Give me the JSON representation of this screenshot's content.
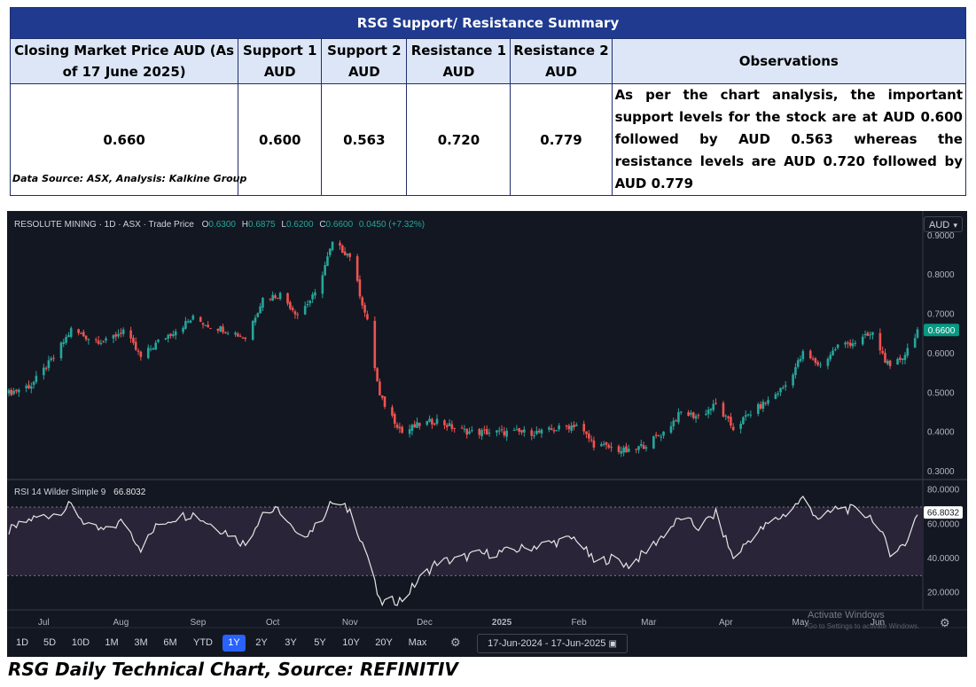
{
  "summary_table": {
    "title": "RSG Support/  Resistance Summary",
    "headers": [
      "Closing Market Price AUD (As of 17 June 2025)",
      "Support 1 AUD",
      "Support 2 AUD",
      "Resistance 1 AUD",
      "Resistance 2 AUD",
      "Observations"
    ],
    "values": [
      "0.660",
      "0.600",
      "0.563",
      "0.720",
      "0.779"
    ],
    "observation": "As per the chart analysis, the important support levels for the stock are at AUD 0.600 followed by AUD 0.563 whereas the resistance levels are AUD 0.720 followed by AUD 0.779",
    "source": "Data Source: ASX, Analysis: Kalkine Group"
  },
  "chart_header": {
    "symbol": "RESOLUTE MINING · 1D · ASX · Trade Price",
    "o_label": "O",
    "o_value": "0.6300",
    "h_label": "H",
    "h_value": "0.6875",
    "l_label": "L",
    "l_value": "0.6200",
    "c_label": "C",
    "c_value": "0.6600",
    "change": "0.0450 (+7.32%)",
    "currency": "AUD",
    "last_price_tag": "0.6600"
  },
  "rsi_header": {
    "label": "RSI 14 Wilder Simple 9",
    "value": "66.8032",
    "value_tag": "66.8032"
  },
  "timeframes": [
    "1D",
    "5D",
    "10D",
    "1M",
    "3M",
    "6M",
    "YTD",
    "1Y",
    "2Y",
    "3Y",
    "5Y",
    "10Y",
    "20Y",
    "Max"
  ],
  "active_timeframe": "1Y",
  "date_range": "17-Jun-2024  -  17-Jun-2025",
  "watermark": {
    "line1": "Activate Windows",
    "line2": "Go to Settings to activate Windows."
  },
  "caption": "RSG Daily Technical Chart, Source: REFINITIV",
  "colors": {
    "up": "#26a69a",
    "down": "#ef5350",
    "background": "#131722",
    "rsi_line": "#e6e6e6",
    "rsi_band": "#2a2438",
    "highlight": "#2962ff",
    "last_price": "#089981"
  },
  "chart_data": [
    {
      "type": "candlestick",
      "title": "RESOLUTE MINING · 1D · ASX · Trade Price",
      "x_range": [
        "2024-06-17",
        "2025-06-17"
      ],
      "x_ticks": [
        "Jul",
        "Aug",
        "Sep",
        "Oct",
        "Nov",
        "Dec",
        "2025",
        "Feb",
        "Mar",
        "Apr",
        "May",
        "Jun"
      ],
      "y_ticks": [
        "0.3000",
        "0.4000",
        "0.5000",
        "0.6000",
        "0.7000",
        "0.8000",
        "0.9000"
      ],
      "ylim": [
        0.28,
        0.94
      ],
      "close_path": [
        {
          "date": "2024-06-17",
          "close": 0.5
        },
        {
          "date": "2024-06-26",
          "close": 0.52
        },
        {
          "date": "2024-07-05",
          "close": 0.59
        },
        {
          "date": "2024-07-12",
          "close": 0.66
        },
        {
          "date": "2024-07-19",
          "close": 0.64
        },
        {
          "date": "2024-07-26",
          "close": 0.63
        },
        {
          "date": "2024-08-02",
          "close": 0.66
        },
        {
          "date": "2024-08-09",
          "close": 0.59
        },
        {
          "date": "2024-08-16",
          "close": 0.63
        },
        {
          "date": "2024-08-23",
          "close": 0.66
        },
        {
          "date": "2024-08-30",
          "close": 0.69
        },
        {
          "date": "2024-09-06",
          "close": 0.67
        },
        {
          "date": "2024-09-13",
          "close": 0.66
        },
        {
          "date": "2024-09-20",
          "close": 0.64
        },
        {
          "date": "2024-09-27",
          "close": 0.74
        },
        {
          "date": "2024-10-04",
          "close": 0.75
        },
        {
          "date": "2024-10-11",
          "close": 0.7
        },
        {
          "date": "2024-10-18",
          "close": 0.75
        },
        {
          "date": "2024-10-25",
          "close": 0.88
        },
        {
          "date": "2024-11-01",
          "close": 0.85
        },
        {
          "date": "2024-11-08",
          "close": 0.68
        },
        {
          "date": "2024-11-13",
          "close": 0.49
        },
        {
          "date": "2024-11-22",
          "close": 0.4
        },
        {
          "date": "2024-11-29",
          "close": 0.42
        },
        {
          "date": "2024-12-06",
          "close": 0.43
        },
        {
          "date": "2024-12-13",
          "close": 0.41
        },
        {
          "date": "2024-12-20",
          "close": 0.4
        },
        {
          "date": "2025-01-03",
          "close": 0.4
        },
        {
          "date": "2025-01-17",
          "close": 0.4
        },
        {
          "date": "2025-01-31",
          "close": 0.42
        },
        {
          "date": "2025-02-07",
          "close": 0.37
        },
        {
          "date": "2025-02-14",
          "close": 0.36
        },
        {
          "date": "2025-02-21",
          "close": 0.35
        },
        {
          "date": "2025-02-28",
          "close": 0.37
        },
        {
          "date": "2025-03-07",
          "close": 0.4
        },
        {
          "date": "2025-03-14",
          "close": 0.45
        },
        {
          "date": "2025-03-21",
          "close": 0.44
        },
        {
          "date": "2025-03-28",
          "close": 0.47
        },
        {
          "date": "2025-04-04",
          "close": 0.41
        },
        {
          "date": "2025-04-11",
          "close": 0.45
        },
        {
          "date": "2025-04-18",
          "close": 0.48
        },
        {
          "date": "2025-04-25",
          "close": 0.52
        },
        {
          "date": "2025-05-02",
          "close": 0.6
        },
        {
          "date": "2025-05-09",
          "close": 0.57
        },
        {
          "date": "2025-05-16",
          "close": 0.62
        },
        {
          "date": "2025-05-23",
          "close": 0.63
        },
        {
          "date": "2025-05-30",
          "close": 0.65
        },
        {
          "date": "2025-06-06",
          "close": 0.56
        },
        {
          "date": "2025-06-12",
          "close": 0.6
        },
        {
          "date": "2025-06-17",
          "close": 0.66
        }
      ]
    },
    {
      "type": "line",
      "title": "RSI 14 Wilder Simple 9",
      "x_range": [
        "2024-06-17",
        "2025-06-17"
      ],
      "y_ticks": [
        "20.0000",
        "40.0000",
        "60.0000",
        "80.0000"
      ],
      "ylim": [
        10,
        85
      ],
      "bands": [
        30,
        70
      ],
      "points": [
        {
          "date": "2024-06-17",
          "rsi": 56
        },
        {
          "date": "2024-06-26",
          "rsi": 63
        },
        {
          "date": "2024-07-05",
          "rsi": 66
        },
        {
          "date": "2024-07-12",
          "rsi": 71
        },
        {
          "date": "2024-07-19",
          "rsi": 58
        },
        {
          "date": "2024-07-26",
          "rsi": 56
        },
        {
          "date": "2024-08-02",
          "rsi": 62
        },
        {
          "date": "2024-08-09",
          "rsi": 46
        },
        {
          "date": "2024-08-16",
          "rsi": 60
        },
        {
          "date": "2024-08-23",
          "rsi": 64
        },
        {
          "date": "2024-08-30",
          "rsi": 66
        },
        {
          "date": "2024-09-06",
          "rsi": 60
        },
        {
          "date": "2024-09-13",
          "rsi": 55
        },
        {
          "date": "2024-09-20",
          "rsi": 48
        },
        {
          "date": "2024-09-27",
          "rsi": 67
        },
        {
          "date": "2024-10-04",
          "rsi": 68
        },
        {
          "date": "2024-10-11",
          "rsi": 52
        },
        {
          "date": "2024-10-18",
          "rsi": 58
        },
        {
          "date": "2024-10-25",
          "rsi": 73
        },
        {
          "date": "2024-11-01",
          "rsi": 68
        },
        {
          "date": "2024-11-08",
          "rsi": 42
        },
        {
          "date": "2024-11-13",
          "rsi": 14
        },
        {
          "date": "2024-11-22",
          "rsi": 16
        },
        {
          "date": "2024-11-29",
          "rsi": 28
        },
        {
          "date": "2024-12-06",
          "rsi": 38
        },
        {
          "date": "2024-12-13",
          "rsi": 39
        },
        {
          "date": "2024-12-20",
          "rsi": 42
        },
        {
          "date": "2025-01-03",
          "rsi": 44
        },
        {
          "date": "2025-01-17",
          "rsi": 48
        },
        {
          "date": "2025-01-31",
          "rsi": 52
        },
        {
          "date": "2025-02-07",
          "rsi": 38
        },
        {
          "date": "2025-02-14",
          "rsi": 40
        },
        {
          "date": "2025-02-21",
          "rsi": 36
        },
        {
          "date": "2025-02-28",
          "rsi": 44
        },
        {
          "date": "2025-03-07",
          "rsi": 54
        },
        {
          "date": "2025-03-14",
          "rsi": 64
        },
        {
          "date": "2025-03-21",
          "rsi": 58
        },
        {
          "date": "2025-03-28",
          "rsi": 66
        },
        {
          "date": "2025-04-04",
          "rsi": 40
        },
        {
          "date": "2025-04-11",
          "rsi": 52
        },
        {
          "date": "2025-04-18",
          "rsi": 60
        },
        {
          "date": "2025-04-25",
          "rsi": 66
        },
        {
          "date": "2025-05-02",
          "rsi": 75
        },
        {
          "date": "2025-05-09",
          "rsi": 62
        },
        {
          "date": "2025-05-16",
          "rsi": 70
        },
        {
          "date": "2025-05-23",
          "rsi": 68
        },
        {
          "date": "2025-05-30",
          "rsi": 64
        },
        {
          "date": "2025-06-06",
          "rsi": 44
        },
        {
          "date": "2025-06-12",
          "rsi": 48
        },
        {
          "date": "2025-06-17",
          "rsi": 66.8
        }
      ]
    }
  ]
}
